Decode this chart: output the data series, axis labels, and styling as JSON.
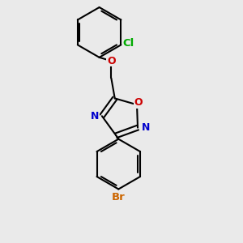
{
  "background_color": "#eaeaea",
  "bond_color": "#000000",
  "bond_width": 1.5,
  "atom_colors": {
    "N": "#0000cc",
    "O": "#cc0000",
    "Br": "#cc6600",
    "Cl": "#00aa00"
  },
  "font_size": 9
}
